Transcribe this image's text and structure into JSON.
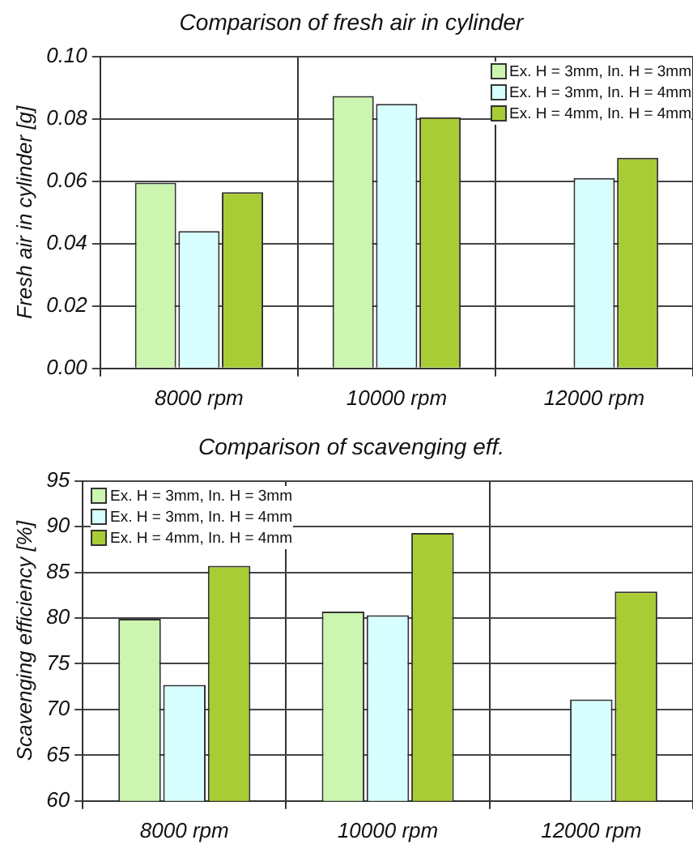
{
  "chart_data": [
    {
      "type": "bar",
      "title": "Comparison of fresh air in cylinder",
      "ylabel": "Fresh air in cylinder [g]",
      "categories": [
        "8000 rpm",
        "10000 rpm",
        "12000 rpm"
      ],
      "series": [
        {
          "name": "Ex. H = 3mm, In. H = 3mm",
          "color": "#ccf5b0",
          "values": [
            0.0595,
            0.0873,
            null
          ]
        },
        {
          "name": "Ex. H = 3mm, In. H = 4mm",
          "color": "#d8ffff",
          "values": [
            0.044,
            0.0848,
            0.061
          ]
        },
        {
          "name": "Ex. H = 4mm, In. H = 4mm",
          "color": "#a8cc33",
          "values": [
            0.0565,
            0.0805,
            0.0675
          ]
        }
      ],
      "ylim": [
        0,
        0.1
      ],
      "yticks": [
        {
          "value": 0,
          "label": "0.00"
        },
        {
          "value": 0.02,
          "label": "0.02"
        },
        {
          "value": 0.04,
          "label": "0.04"
        },
        {
          "value": 0.06,
          "label": "0.06"
        },
        {
          "value": 0.08,
          "label": "0.08"
        },
        {
          "value": 0.1,
          "label": "0.10"
        }
      ],
      "grid": true,
      "legend": "top right"
    },
    {
      "type": "bar",
      "title": "Comparison of scavenging eff.",
      "ylabel": "Scavenging efficiency [%]",
      "categories": [
        "8000 rpm",
        "10000 rpm",
        "12000 rpm"
      ],
      "series": [
        {
          "name": "Ex. H = 3mm, In. H = 3mm",
          "color": "#ccf5b0",
          "values": [
            79.9,
            80.7,
            null
          ]
        },
        {
          "name": "Ex. H = 3mm, In. H = 4mm",
          "color": "#d8ffff",
          "values": [
            72.7,
            80.3,
            71.1
          ]
        },
        {
          "name": "Ex. H = 4mm, In. H = 4mm",
          "color": "#a8cc33",
          "values": [
            85.7,
            89.3,
            82.9
          ]
        }
      ],
      "ylim": [
        60,
        95
      ],
      "yticks": [
        60,
        65,
        70,
        75,
        80,
        85,
        90,
        95
      ],
      "grid": true,
      "legend": "top left"
    }
  ]
}
